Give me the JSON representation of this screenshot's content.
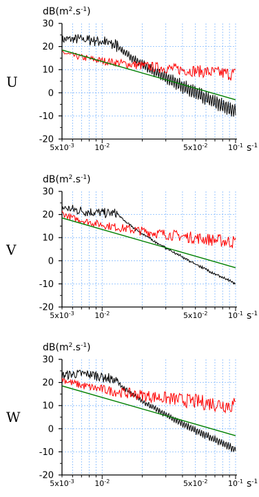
{
  "chart_data": [
    {
      "type": "line",
      "row_label": "U",
      "ylabel": "dB(m",
      "ylabel_sup": "2",
      "ylabel_mid": ".s",
      "ylabel_sup2": "-1",
      "ylabel_end": ")",
      "xunit": "s",
      "xunit_sup": "-1",
      "x_scale": "log",
      "xlim": [
        0.005,
        0.1
      ],
      "ylim": [
        -20,
        30
      ],
      "yticks": [
        "30",
        "20",
        "10",
        "0",
        "-10",
        "-20"
      ],
      "xticks": [
        {
          "base": "5x10",
          "exp": "-3"
        },
        {
          "base": "10",
          "exp": "-2"
        },
        {
          "base": "5x10",
          "exp": "-2"
        },
        {
          "base": "10",
          "exp": "-1"
        }
      ],
      "grid": true,
      "series": [
        {
          "color": "#000000",
          "kind": "oscillating",
          "start": 23,
          "peak": 25,
          "end": -8,
          "amp_end": 3
        },
        {
          "color": "#ff0000",
          "kind": "noisy",
          "start": 18,
          "end": 8,
          "noise": 2
        },
        {
          "color": "#008000",
          "kind": "straight",
          "start": 18.5,
          "end": -3
        }
      ]
    },
    {
      "type": "line",
      "row_label": "V",
      "ylabel": "dB(m",
      "ylabel_sup": "2",
      "ylabel_mid": ".s",
      "ylabel_sup2": "-1",
      "ylabel_end": ")",
      "xunit": "s",
      "xunit_sup": "-1",
      "x_scale": "log",
      "xlim": [
        0.005,
        0.1
      ],
      "ylim": [
        -20,
        30
      ],
      "yticks": [
        "30",
        "20",
        "10",
        "0",
        "-10",
        "-20"
      ],
      "xticks": [
        {
          "base": "5x10",
          "exp": "-3"
        },
        {
          "base": "10",
          "exp": "-2"
        },
        {
          "base": "5x10",
          "exp": "-2"
        },
        {
          "base": "10",
          "exp": "-1"
        }
      ],
      "grid": true,
      "series": [
        {
          "color": "#000000",
          "kind": "smooth",
          "start": 23,
          "peak": 22,
          "end": -10,
          "amp_end": 0.3
        },
        {
          "color": "#ff0000",
          "kind": "noisy",
          "start": 21,
          "end": 8,
          "noise": 2
        },
        {
          "color": "#008000",
          "kind": "straight",
          "start": 18.5,
          "end": -3
        }
      ]
    },
    {
      "type": "line",
      "row_label": "W",
      "ylabel": "dB(m",
      "ylabel_sup": "2",
      "ylabel_mid": ".s",
      "ylabel_sup2": "-1",
      "ylabel_end": ")",
      "xunit": "s",
      "xunit_sup": "-1",
      "x_scale": "log",
      "xlim": [
        0.005,
        0.1
      ],
      "ylim": [
        -20,
        30
      ],
      "yticks": [
        "30",
        "20",
        "10",
        "0",
        "-10",
        "-20"
      ],
      "xticks": [
        {
          "base": "5x10",
          "exp": "-3"
        },
        {
          "base": "10",
          "exp": "-2"
        },
        {
          "base": "5x10",
          "exp": "-2"
        },
        {
          "base": "10",
          "exp": "-1"
        }
      ],
      "grid": true,
      "series": [
        {
          "color": "#000000",
          "kind": "oscillating",
          "start": 23,
          "peak": 26,
          "end": -9,
          "amp_end": 1.5
        },
        {
          "color": "#ff0000",
          "kind": "noisy",
          "start": 22,
          "end": 10,
          "noise": 2.5
        },
        {
          "color": "#008000",
          "kind": "straight",
          "start": 18.5,
          "end": -3
        }
      ]
    }
  ]
}
